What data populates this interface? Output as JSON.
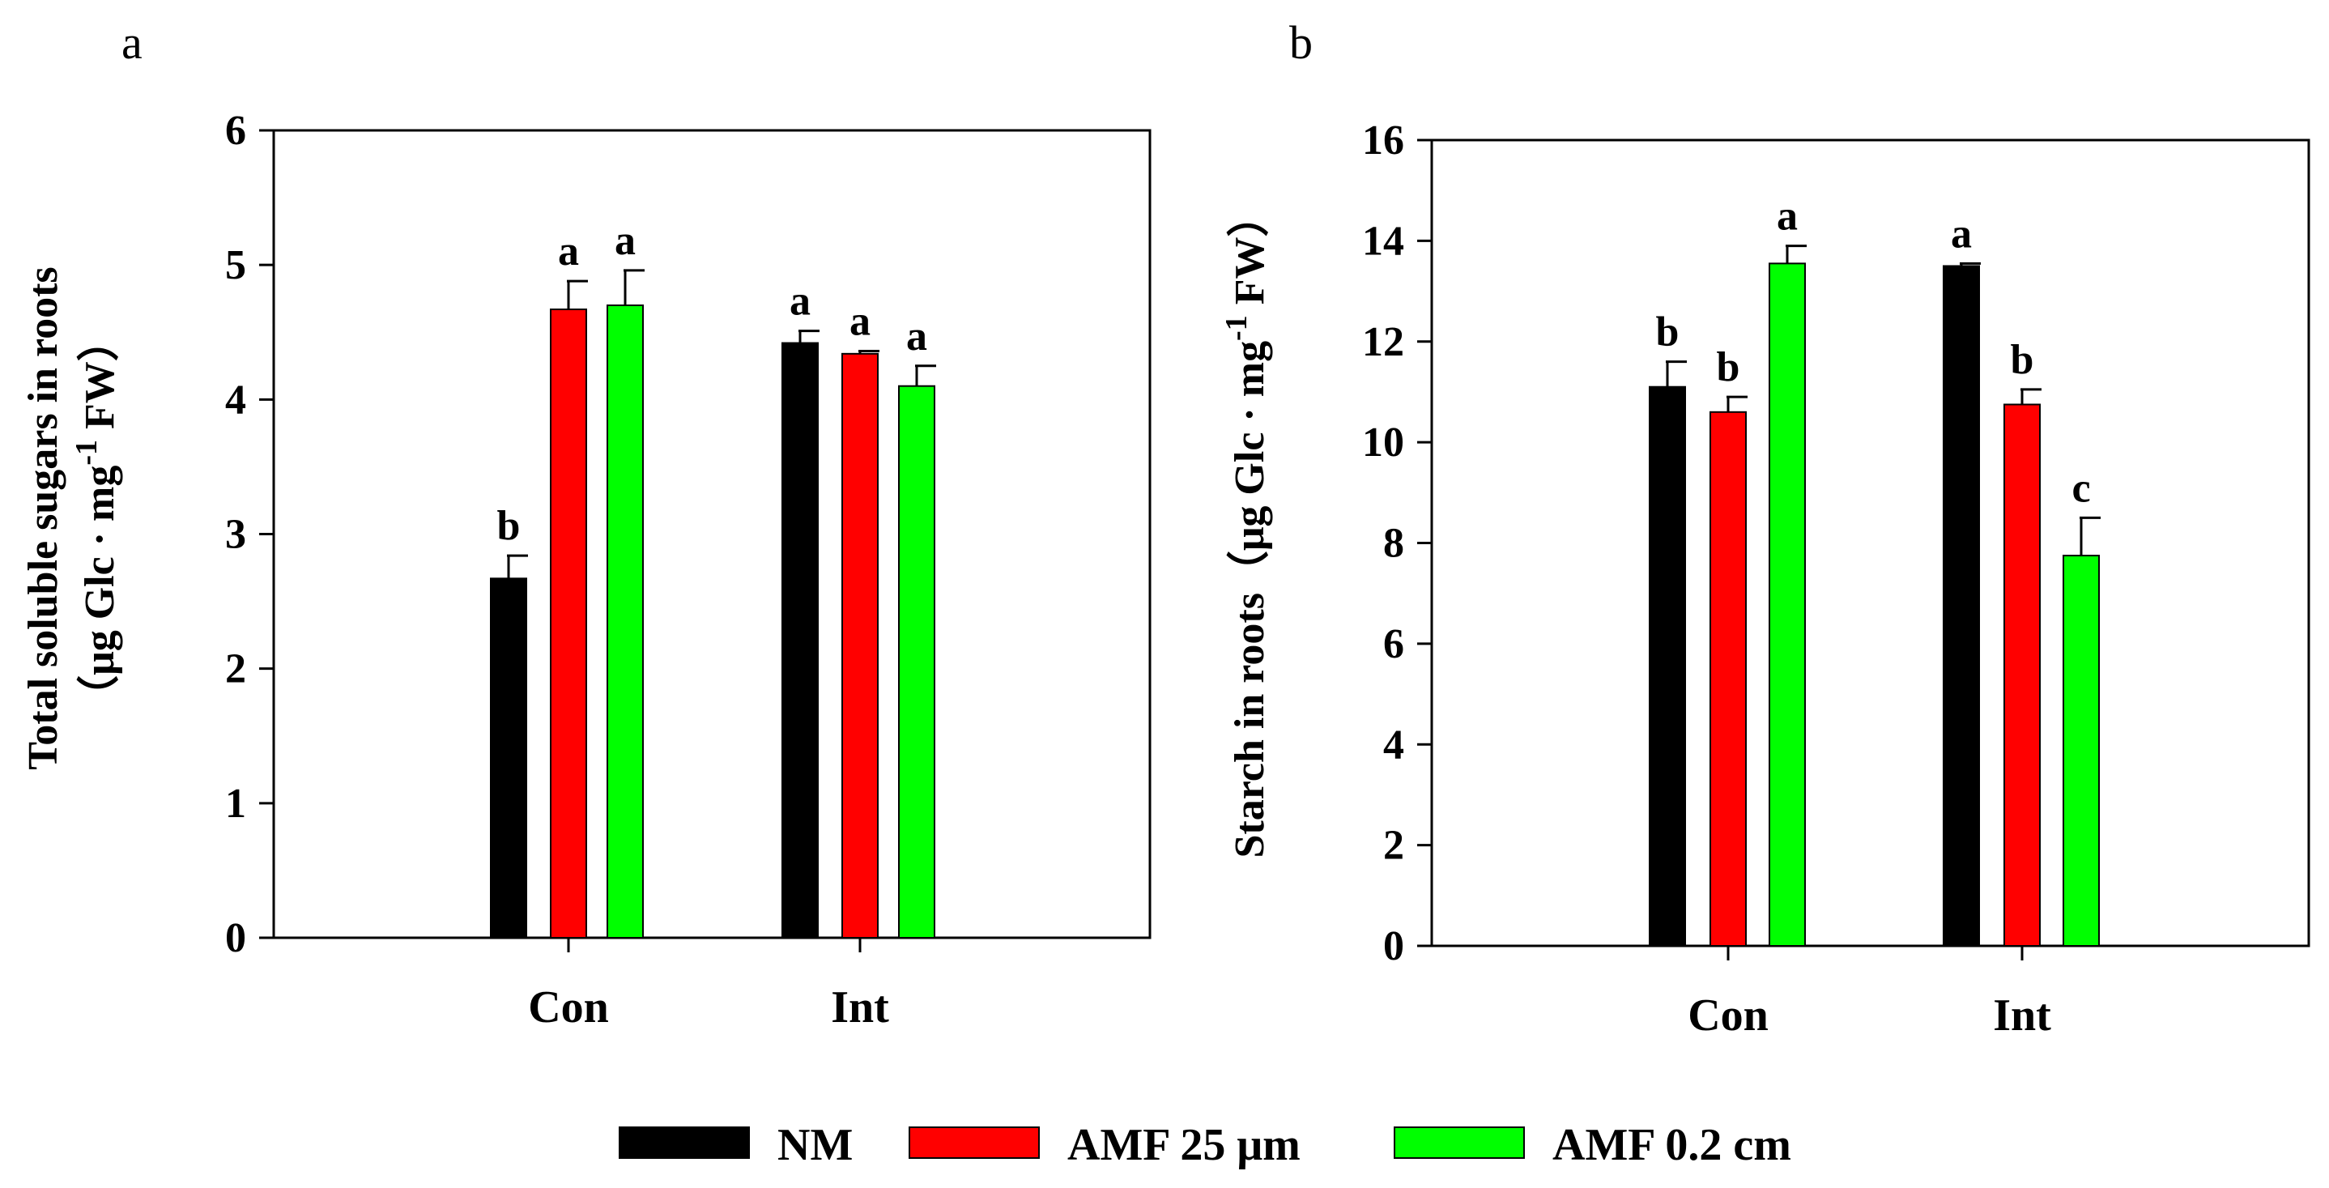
{
  "legend": [
    {
      "label": "NM",
      "color": "#000000"
    },
    {
      "label": "AMF 25 μm",
      "color": "#ff0000"
    },
    {
      "label": "AMF 0.2 cm",
      "color": "#00ff00"
    }
  ],
  "chart_data": [
    {
      "type": "bar",
      "panel_letter": "a",
      "ylabel_line1": "Total soluble sugars in roots",
      "ylabel_line2_prefix": "（μg Glc · mg",
      "ylabel_line2_sup": "-1",
      "ylabel_line2_suffix": " FW）",
      "categories": [
        "Con",
        "Int"
      ],
      "ylim": [
        0,
        6
      ],
      "yticks": [
        "0",
        "1",
        "2",
        "3",
        "4",
        "5",
        "6"
      ],
      "series": [
        {
          "name": "NM",
          "color": "#000000",
          "values": [
            2.67,
            4.42
          ],
          "errors": [
            0.17,
            0.09
          ],
          "letters": [
            "b",
            "a"
          ]
        },
        {
          "name": "AMF 25 μm",
          "color": "#ff0000",
          "values": [
            4.67,
            4.34
          ],
          "errors": [
            0.21,
            0.02
          ],
          "letters": [
            "a",
            "a"
          ]
        },
        {
          "name": "AMF 0.2 cm",
          "color": "#00ff00",
          "values": [
            4.7,
            4.1
          ],
          "errors": [
            0.26,
            0.15
          ],
          "letters": [
            "a",
            "a"
          ]
        }
      ]
    },
    {
      "type": "bar",
      "panel_letter": "b",
      "ylabel_line1_prefix": "Starch in roots（μg Glc · mg",
      "ylabel_line1_sup": "-1",
      "ylabel_line1_suffix": " FW）",
      "categories": [
        "Con",
        "Int"
      ],
      "ylim": [
        0,
        16
      ],
      "yticks": [
        "0",
        "2",
        "4",
        "6",
        "8",
        "10",
        "12",
        "14",
        "16"
      ],
      "series": [
        {
          "name": "NM",
          "color": "#000000",
          "values": [
            11.1,
            13.5
          ],
          "errors": [
            0.5,
            0.05
          ],
          "letters": [
            "b",
            "a"
          ]
        },
        {
          "name": "AMF 25 μm",
          "color": "#ff0000",
          "values": [
            10.6,
            10.75
          ],
          "errors": [
            0.3,
            0.3
          ],
          "letters": [
            "b",
            "b"
          ]
        },
        {
          "name": "AMF 0.2 cm",
          "color": "#00ff00",
          "values": [
            13.55,
            7.75
          ],
          "errors": [
            0.35,
            0.75
          ],
          "letters": [
            "a",
            "c"
          ]
        }
      ]
    }
  ]
}
